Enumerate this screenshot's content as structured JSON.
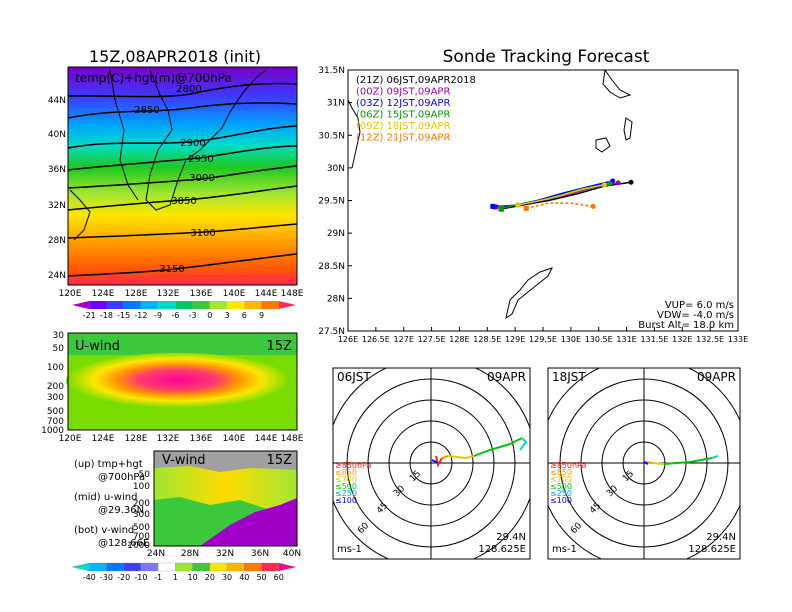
{
  "main_title": "15Z,08APR2018 (init)",
  "track_title": "Sonde Tracking Forecast",
  "panel_700": {
    "label": "temp(C)+hgt(m)@700hPa",
    "lat_labels": [
      "44N",
      "40N",
      "36N",
      "32N",
      "28N",
      "24N"
    ],
    "lon_labels": [
      "120E",
      "124E",
      "128E",
      "132E",
      "136E",
      "140E",
      "144E",
      "148E"
    ],
    "contours": [
      "2800",
      "2850",
      "2900",
      "2950",
      "3000",
      "3050",
      "3100",
      "3150"
    ],
    "colorbar_labels": [
      "-21",
      "-18",
      "-15",
      "-12",
      "-9",
      "-6",
      "-3",
      "0",
      "3",
      "6",
      "9"
    ]
  },
  "panel_u": {
    "label": "U-wind",
    "time": "15Z",
    "p_labels": [
      "30",
      "50",
      "100",
      "200",
      "300",
      "500",
      "700",
      "1000"
    ],
    "lon_labels": [
      "120E",
      "124E",
      "128E",
      "132E",
      "136E",
      "140E",
      "144E",
      "148E"
    ]
  },
  "panel_v": {
    "label": "V-wind",
    "time": "15Z",
    "p_labels": [
      "50",
      "100",
      "200",
      "300",
      "500",
      "700",
      "1000"
    ],
    "lat_labels": [
      "24N",
      "28N",
      "32N",
      "36N",
      "40N"
    ]
  },
  "wind_colorbar_labels": [
    "-40",
    "-30",
    "-20",
    "-10",
    "-1",
    "1",
    "10",
    "20",
    "30",
    "40",
    "50",
    "60"
  ],
  "legend_text": {
    "up1": "(up) tmp+hgt",
    "up2": "@700hPa",
    "mid1": "(mid) u-wind",
    "mid2": "@29.36N",
    "bot1": "(bot) v-wind",
    "bot2": "@128.66E"
  },
  "chart_data": {
    "type": "line",
    "title": "Sonde Tracking Forecast",
    "x_ticks": [
      "126E",
      "126.5E",
      "127E",
      "127.5E",
      "128E",
      "128.5E",
      "129E",
      "129.5E",
      "130E",
      "130.5E",
      "131E",
      "131.5E",
      "132E",
      "132.5E",
      "133E"
    ],
    "y_ticks": [
      "31.5N",
      "31N",
      "30.5N",
      "30N",
      "29.5N",
      "29N",
      "28.5N",
      "28N",
      "27.5N"
    ],
    "xlim": [
      126,
      133
    ],
    "ylim": [
      27.5,
      31.5
    ],
    "series": [
      {
        "name": "(21Z)  06JST,09APR2018",
        "color": "#000000",
        "points": [
          [
            131.08,
            29.78
          ],
          [
            130.6,
            29.72
          ],
          [
            130.1,
            29.6
          ],
          [
            129.6,
            29.5
          ],
          [
            129.2,
            29.44
          ],
          [
            128.75,
            29.37
          ]
        ]
      },
      {
        "name": "(00Z)  09JST,09APR",
        "color": "#a000c8",
        "points": [
          [
            130.85,
            29.77
          ],
          [
            130.4,
            29.7
          ],
          [
            129.9,
            29.58
          ],
          [
            129.45,
            29.5
          ],
          [
            129.0,
            29.43
          ],
          [
            128.65,
            29.4
          ]
        ]
      },
      {
        "name": "(03Z)  12JST,09APR",
        "color": "#0000ff",
        "points": [
          [
            130.75,
            29.8
          ],
          [
            130.3,
            29.71
          ],
          [
            129.8,
            29.6
          ],
          [
            129.4,
            29.5
          ],
          [
            128.95,
            29.42
          ],
          [
            128.6,
            29.41
          ]
        ]
      },
      {
        "name": "(06Z)  15JST,09APR",
        "color": "#00a000",
        "points": [
          [
            130.7,
            29.76
          ],
          [
            130.25,
            29.69
          ],
          [
            129.8,
            29.58
          ],
          [
            129.4,
            29.49
          ],
          [
            129.0,
            29.43
          ],
          [
            128.75,
            29.38
          ]
        ]
      },
      {
        "name": "(09Z)  18JST,09APR",
        "color": "#e6c800",
        "points": [
          [
            130.6,
            29.74
          ],
          [
            130.2,
            29.67
          ],
          [
            129.8,
            29.57
          ],
          [
            129.4,
            29.49
          ],
          [
            129.05,
            29.43
          ]
        ]
      },
      {
        "name": "(12Z)  21JST,09APR",
        "color": "#ff7300",
        "points": [
          [
            130.4,
            29.41
          ],
          [
            130.0,
            29.46
          ],
          [
            129.6,
            29.46
          ],
          [
            129.2,
            29.38
          ]
        ]
      }
    ],
    "info": [
      "VUP=  6.0  m/s",
      "VDW= -4.0  m/s",
      "Burst Alt=  18.0  km"
    ]
  },
  "hodo_left": {
    "time": "06JST",
    "date": "09APR",
    "lat": "29.4N",
    "lon": "128.625E",
    "units": "ms-1"
  },
  "hodo_right": {
    "time": "18JST",
    "date": "09APR",
    "lat": "29.4N",
    "lon": "128.625E",
    "units": "ms-1"
  },
  "hodo_ring_labels": [
    "15",
    "30",
    "45",
    "60"
  ],
  "hodo_levels": [
    {
      "label": "≥850hPa",
      "color": "#ff2020"
    },
    {
      "label": "≤850",
      "color": "#ff9600"
    },
    {
      "label": "≤700",
      "color": "#e6c800"
    },
    {
      "label": "≤500",
      "color": "#00c800"
    },
    {
      "label": "≤250",
      "color": "#00a0ff"
    },
    {
      "label": "≤100",
      "color": "#0000ff"
    }
  ]
}
